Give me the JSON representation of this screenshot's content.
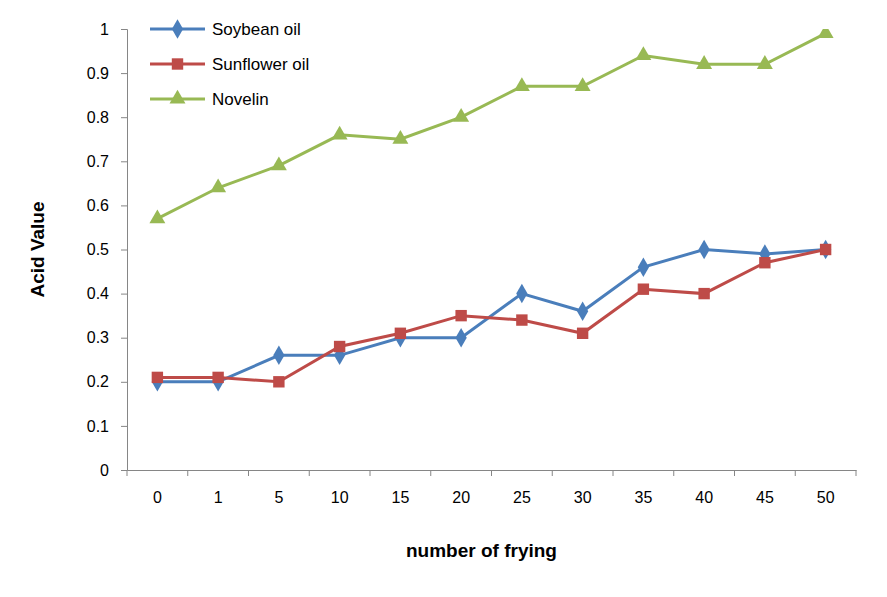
{
  "chart_data": {
    "type": "line",
    "x_label": "number of frying",
    "y_label": "Acid Value",
    "categories": [
      "0",
      "1",
      "5",
      "10",
      "15",
      "20",
      "25",
      "30",
      "35",
      "40",
      "45",
      "50"
    ],
    "series": [
      {
        "name": "Soybean oil",
        "color": "#4a7ebb",
        "marker": "diamond",
        "values": [
          0.2,
          0.2,
          0.26,
          0.26,
          0.3,
          0.3,
          0.4,
          0.36,
          0.46,
          0.5,
          0.49,
          0.5
        ]
      },
      {
        "name": "Sunflower oil",
        "color": "#be4b48",
        "marker": "square",
        "values": [
          0.21,
          0.21,
          0.2,
          0.28,
          0.31,
          0.35,
          0.34,
          0.31,
          0.41,
          0.4,
          0.47,
          0.5
        ]
      },
      {
        "name": "Novelin",
        "color": "#98b954",
        "marker": "triangle",
        "values": [
          0.57,
          0.64,
          0.69,
          0.76,
          0.75,
          0.8,
          0.87,
          0.87,
          0.94,
          0.92,
          0.92,
          0.99
        ]
      }
    ],
    "ylim": [
      0,
      1
    ],
    "yticks": [
      0,
      0.1,
      0.2,
      0.3,
      0.4,
      0.5,
      0.6,
      0.7,
      0.8,
      0.9,
      1
    ],
    "grid": false,
    "legend": "upper left"
  }
}
